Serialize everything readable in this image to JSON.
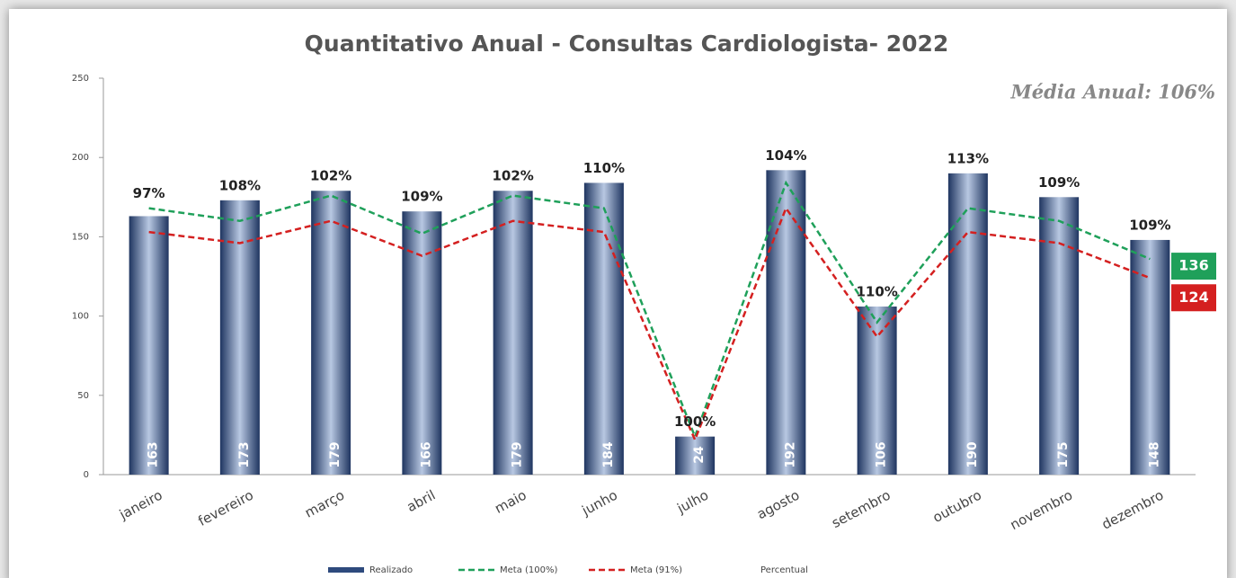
{
  "chart_data": {
    "type": "bar",
    "title": "Quantitativo Anual - Consultas Cardiologista- 2022",
    "annotation": "Média Anual: 106%",
    "categories": [
      "janeiro",
      "fevereiro",
      "março",
      "abril",
      "maio",
      "junho",
      "julho",
      "agosto",
      "setembro",
      "outubro",
      "novembro",
      "dezembro"
    ],
    "series": [
      {
        "name": "Realizado",
        "type": "bar",
        "color": "#2e4a7d",
        "values": [
          163,
          173,
          179,
          166,
          179,
          184,
          24,
          192,
          106,
          190,
          175,
          148
        ]
      },
      {
        "name": "Meta (100%)",
        "type": "line",
        "color": "#1fa05a",
        "values": [
          168,
          160,
          176,
          152,
          176,
          168,
          24,
          184,
          96,
          168,
          160,
          136
        ]
      },
      {
        "name": "Meta (91%)",
        "type": "line",
        "color": "#d42020",
        "values": [
          153,
          146,
          160,
          138,
          160,
          153,
          22,
          168,
          87,
          153,
          146,
          124
        ]
      },
      {
        "name": "Percentual",
        "values": [
          97,
          108,
          102,
          109,
          102,
          110,
          100,
          104,
          110,
          113,
          109,
          109
        ],
        "value_labels": [
          "97%",
          "108%",
          "102%",
          "109%",
          "102%",
          "110%",
          "100%",
          "104%",
          "110%",
          "113%",
          "109%",
          "109%"
        ]
      }
    ],
    "ylim": [
      0,
      250
    ],
    "yticks": [
      0,
      50,
      100,
      150,
      200,
      250
    ]
  }
}
